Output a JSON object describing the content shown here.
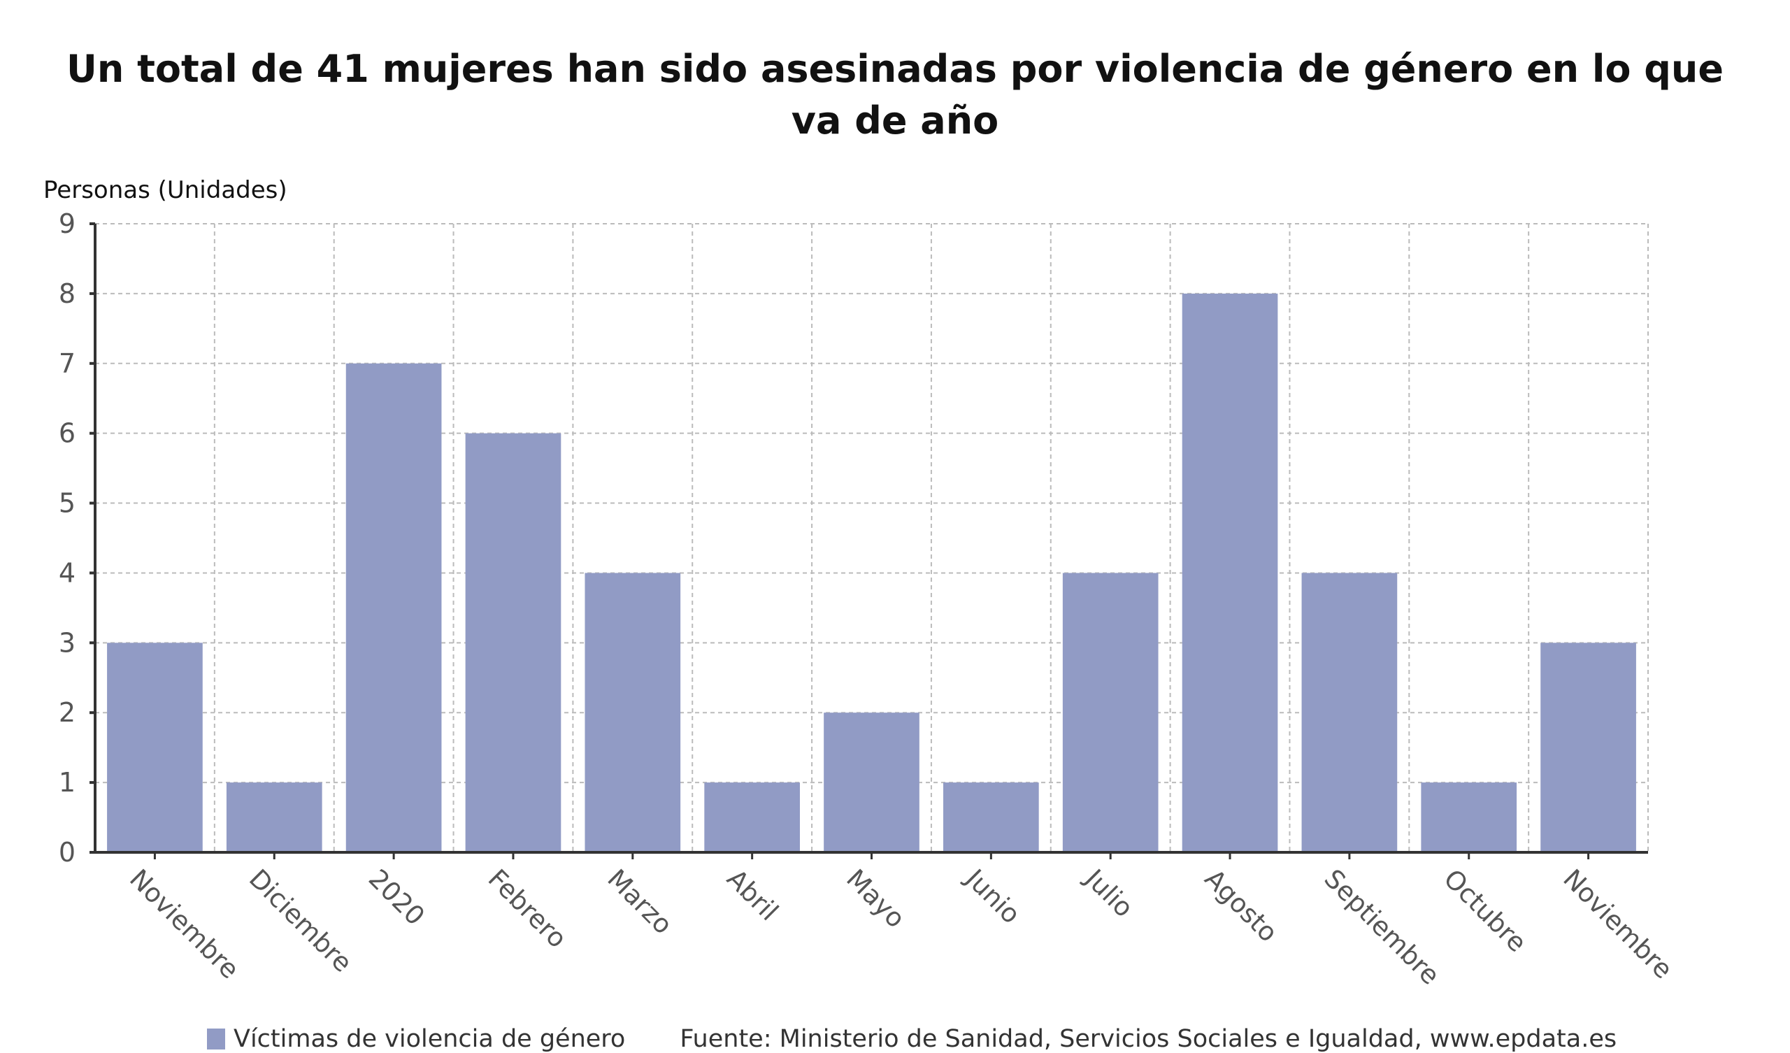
{
  "chart_data": {
    "type": "bar",
    "title": "Un total de 41 mujeres han sido asesinadas por violencia de género en lo que va de año",
    "ylabel": "Personas (Unidades)",
    "xlabel": "",
    "categories": [
      "Noviembre",
      "Diciembre",
      "2020",
      "Febrero",
      "Marzo",
      "Abril",
      "Mayo",
      "Junio",
      "Julio",
      "Agosto",
      "Septiembre",
      "Octubre",
      "Noviembre"
    ],
    "series": [
      {
        "name": "Víctimas de violencia de género",
        "values": [
          3,
          1,
          7,
          6,
          4,
          1,
          2,
          1,
          4,
          8,
          4,
          1,
          3
        ],
        "color": "#919bc5"
      }
    ],
    "ylim": [
      0,
      9
    ],
    "yticks": [
      0,
      1,
      2,
      3,
      4,
      5,
      6,
      7,
      8,
      9
    ],
    "grid": true,
    "legend": "bottom-left"
  },
  "source": "Fuente: Ministerio de Sanidad, Servicios Sociales e Igualdad, www.epdata.es"
}
